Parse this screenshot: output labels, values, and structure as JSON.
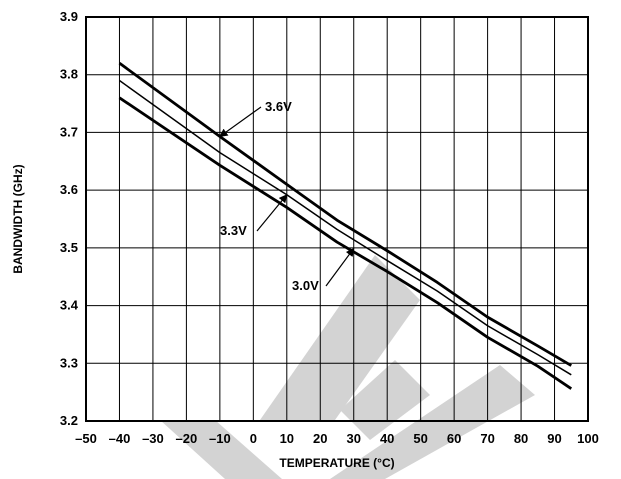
{
  "chart_data": {
    "type": "line",
    "title": "",
    "xlabel": "TEMPERATURE (°C)",
    "ylabel": "BANDWIDTH (GHz)",
    "xlim": [
      -50,
      100
    ],
    "ylim": [
      3.2,
      3.9
    ],
    "xticks": [
      -50,
      -40,
      -30,
      -20,
      -10,
      0,
      10,
      20,
      30,
      40,
      50,
      60,
      70,
      80,
      90,
      100
    ],
    "xtick_labels": [
      "–50",
      "–40",
      "–30",
      "–20",
      "–10",
      "0",
      "10",
      "20",
      "30",
      "40",
      "50",
      "60",
      "70",
      "80",
      "90",
      "100"
    ],
    "yticks": [
      3.2,
      3.3,
      3.4,
      3.5,
      3.6,
      3.7,
      3.8,
      3.9
    ],
    "ytick_labels": [
      "3.2",
      "3.3",
      "3.4",
      "3.5",
      "3.6",
      "3.7",
      "3.8",
      "3.9"
    ],
    "grid": true,
    "legend": "none",
    "colors": {
      "line": "#000000",
      "grid": "#000000",
      "watermark": "#d3d3d3"
    },
    "series": [
      {
        "name": "3.6V",
        "x": [
          -40,
          -10,
          10,
          25,
          40,
          55,
          70,
          85,
          95
        ],
        "y": [
          3.82,
          3.693,
          3.61,
          3.548,
          3.495,
          3.44,
          3.38,
          3.33,
          3.296
        ]
      },
      {
        "name": "3.3V",
        "x": [
          -40,
          -10,
          10,
          25,
          40,
          55,
          70,
          85,
          95
        ],
        "y": [
          3.79,
          3.665,
          3.592,
          3.532,
          3.478,
          3.425,
          3.365,
          3.315,
          3.28
        ]
      },
      {
        "name": "3.0V",
        "x": [
          -40,
          -10,
          10,
          25,
          40,
          55,
          70,
          85,
          95
        ],
        "y": [
          3.76,
          3.643,
          3.57,
          3.51,
          3.459,
          3.405,
          3.345,
          3.295,
          3.256
        ]
      }
    ],
    "annotations": [
      {
        "text": "3.6V",
        "series": "3.6V",
        "x": -10,
        "y": 3.693
      },
      {
        "text": "3.3V",
        "series": "3.3V",
        "x": 10,
        "y": 3.592
      },
      {
        "text": "3.0V",
        "series": "3.0V",
        "x": 30,
        "y": 3.499
      }
    ]
  }
}
